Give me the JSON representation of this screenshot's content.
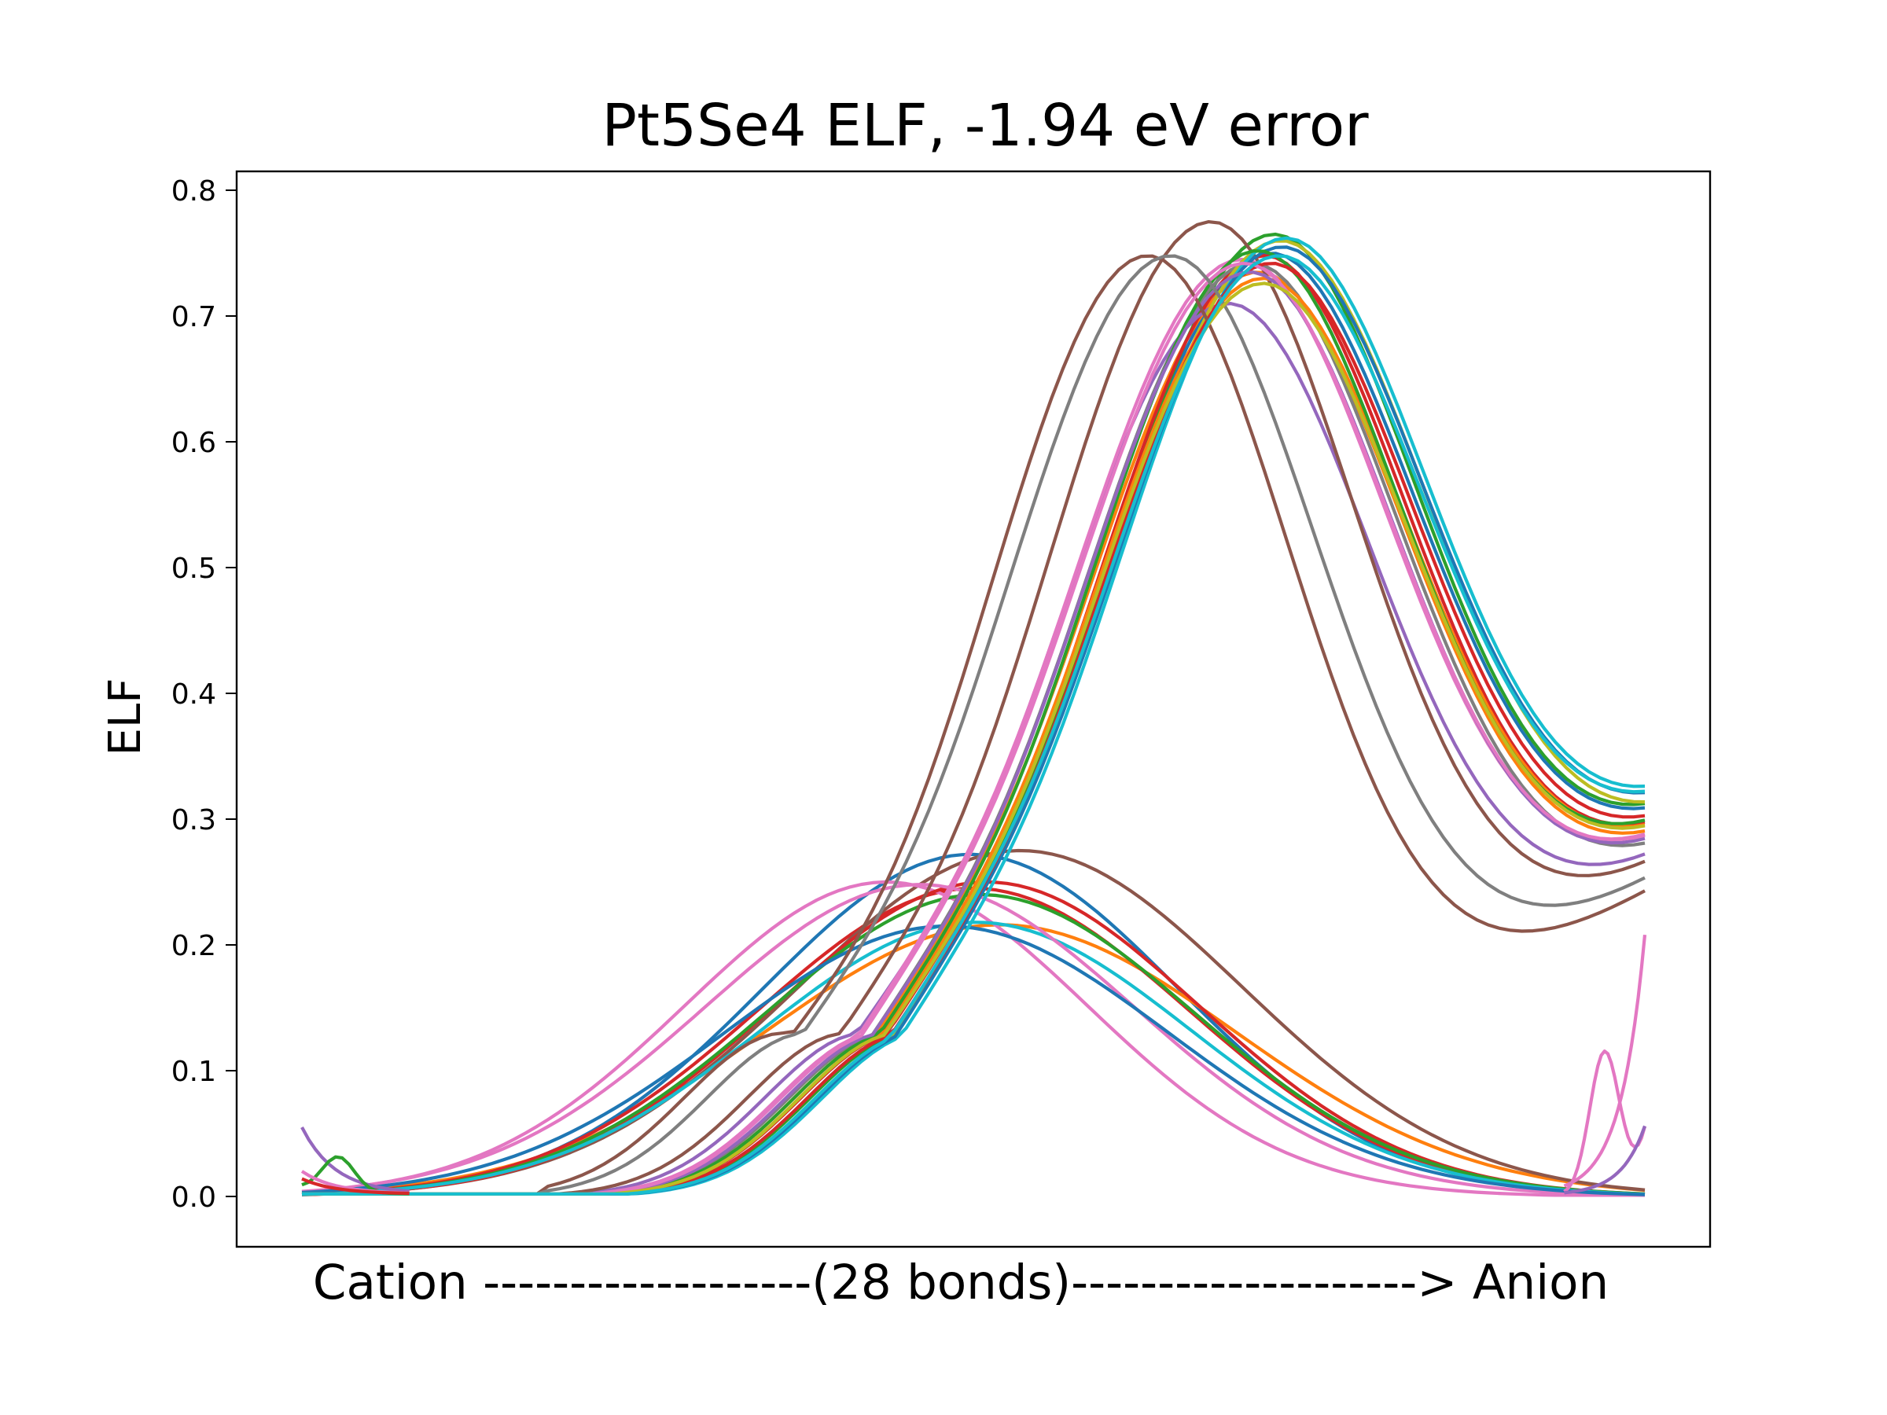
{
  "chart_data": {
    "type": "line",
    "title": "Pt5Se4 ELF, -1.94 eV error",
    "xlabel": "Cation -------------------(28 bonds)--------------------> Anion",
    "ylabel": "ELF",
    "ylim": [
      -0.04,
      0.815
    ],
    "y_ticks": [
      "0.0",
      "0.1",
      "0.2",
      "0.3",
      "0.4",
      "0.5",
      "0.6",
      "0.7",
      "0.8"
    ],
    "x_ticks_shown": false,
    "x_range": [
      0,
      1
    ],
    "grid": false,
    "legend": "none",
    "colors": [
      "#1f77b4",
      "#ff7f0e",
      "#2ca02c",
      "#d62728",
      "#9467bd",
      "#8c564b",
      "#e377c2",
      "#7f7f7f",
      "#bcbd22",
      "#17becf"
    ],
    "upper_group": {
      "description_values": "high-ELF curves, one per bond",
      "curves": [
        {
          "center": 0.722,
          "width": 0.137,
          "peak": 0.75,
          "base_end": 0.272,
          "color": "#1f77b4"
        },
        {
          "center": 0.712,
          "width": 0.136,
          "peak": 0.735,
          "base_end": 0.262,
          "color": "#ff7f0e"
        },
        {
          "center": 0.724,
          "width": 0.135,
          "peak": 0.765,
          "base_end": 0.276,
          "color": "#2ca02c"
        },
        {
          "center": 0.717,
          "width": 0.134,
          "peak": 0.748,
          "base_end": 0.268,
          "color": "#d62728"
        },
        {
          "center": 0.69,
          "width": 0.133,
          "peak": 0.71,
          "base_end": 0.259,
          "color": "#9467bd"
        },
        {
          "center": 0.677,
          "width": 0.13,
          "peak": 0.775,
          "base_end": 0.258,
          "color": "#8c564b"
        },
        {
          "center": 0.7,
          "width": 0.136,
          "peak": 0.745,
          "base_end": 0.266,
          "color": "#e377c2"
        },
        {
          "center": 0.708,
          "width": 0.135,
          "peak": 0.742,
          "base_end": 0.255,
          "color": "#7f7f7f"
        },
        {
          "center": 0.729,
          "width": 0.137,
          "peak": 0.76,
          "base_end": 0.27,
          "color": "#bcbd22"
        },
        {
          "center": 0.733,
          "width": 0.136,
          "peak": 0.762,
          "base_end": 0.282,
          "color": "#17becf"
        },
        {
          "center": 0.73,
          "width": 0.137,
          "peak": 0.755,
          "base_end": 0.278,
          "color": "#1f77b4"
        },
        {
          "center": 0.716,
          "width": 0.136,
          "peak": 0.73,
          "base_end": 0.265,
          "color": "#ff7f0e"
        },
        {
          "center": 0.712,
          "width": 0.134,
          "peak": 0.752,
          "base_end": 0.273,
          "color": "#2ca02c"
        },
        {
          "center": 0.722,
          "width": 0.135,
          "peak": 0.742,
          "base_end": 0.269,
          "color": "#d62728"
        },
        {
          "center": 0.706,
          "width": 0.134,
          "peak": 0.735,
          "base_end": 0.262,
          "color": "#9467bd"
        },
        {
          "center": 0.63,
          "width": 0.125,
          "peak": 0.748,
          "base_end": 0.245,
          "color": "#8c564b"
        },
        {
          "center": 0.702,
          "width": 0.136,
          "peak": 0.742,
          "base_end": 0.264,
          "color": "#e377c2"
        },
        {
          "center": 0.647,
          "width": 0.13,
          "peak": 0.748,
          "base_end": 0.252,
          "color": "#7f7f7f"
        },
        {
          "center": 0.716,
          "width": 0.135,
          "peak": 0.726,
          "base_end": 0.266,
          "color": "#bcbd22"
        },
        {
          "center": 0.728,
          "width": 0.138,
          "peak": 0.748,
          "base_end": 0.28,
          "color": "#17becf"
        }
      ]
    },
    "lower_group": {
      "description_values": "low-ELF curves, one per bond",
      "curves": [
        {
          "center": 0.498,
          "width": 0.155,
          "peak": 0.272,
          "color": "#1f77b4"
        },
        {
          "center": 0.52,
          "width": 0.175,
          "peak": 0.216,
          "color": "#ff7f0e"
        },
        {
          "center": 0.5,
          "width": 0.16,
          "peak": 0.245,
          "color": "#d62728"
        },
        {
          "center": 0.535,
          "width": 0.165,
          "peak": 0.275,
          "color": "#8c564b"
        },
        {
          "center": 0.435,
          "width": 0.15,
          "peak": 0.25,
          "color": "#e377c2"
        },
        {
          "center": 0.51,
          "width": 0.158,
          "peak": 0.25,
          "color": "#d62728"
        },
        {
          "center": 0.505,
          "width": 0.16,
          "peak": 0.24,
          "color": "#2ca02c"
        },
        {
          "center": 0.502,
          "width": 0.16,
          "peak": 0.218,
          "color": "#17becf"
        },
        {
          "center": 0.46,
          "width": 0.16,
          "peak": 0.248,
          "color": "#e377c2"
        },
        {
          "center": 0.48,
          "width": 0.165,
          "peak": 0.215,
          "color": "#1f77b4"
        }
      ]
    },
    "edge_features": {
      "start_spikes": [
        {
          "color": "#9467bd",
          "y0": 0.053
        },
        {
          "color": "#2ca02c",
          "y0": 0.005,
          "bump": 0.028
        },
        {
          "color": "#e377c2",
          "y0": 0.018
        },
        {
          "color": "#d62728",
          "y0": 0.012
        }
      ],
      "end_spikes": [
        {
          "color": "#e377c2",
          "y_end": 0.207
        },
        {
          "color": "#e377c2",
          "y_end": 0.052,
          "bump": 0.112
        },
        {
          "color": "#9467bd",
          "y_end": 0.055
        }
      ]
    }
  }
}
